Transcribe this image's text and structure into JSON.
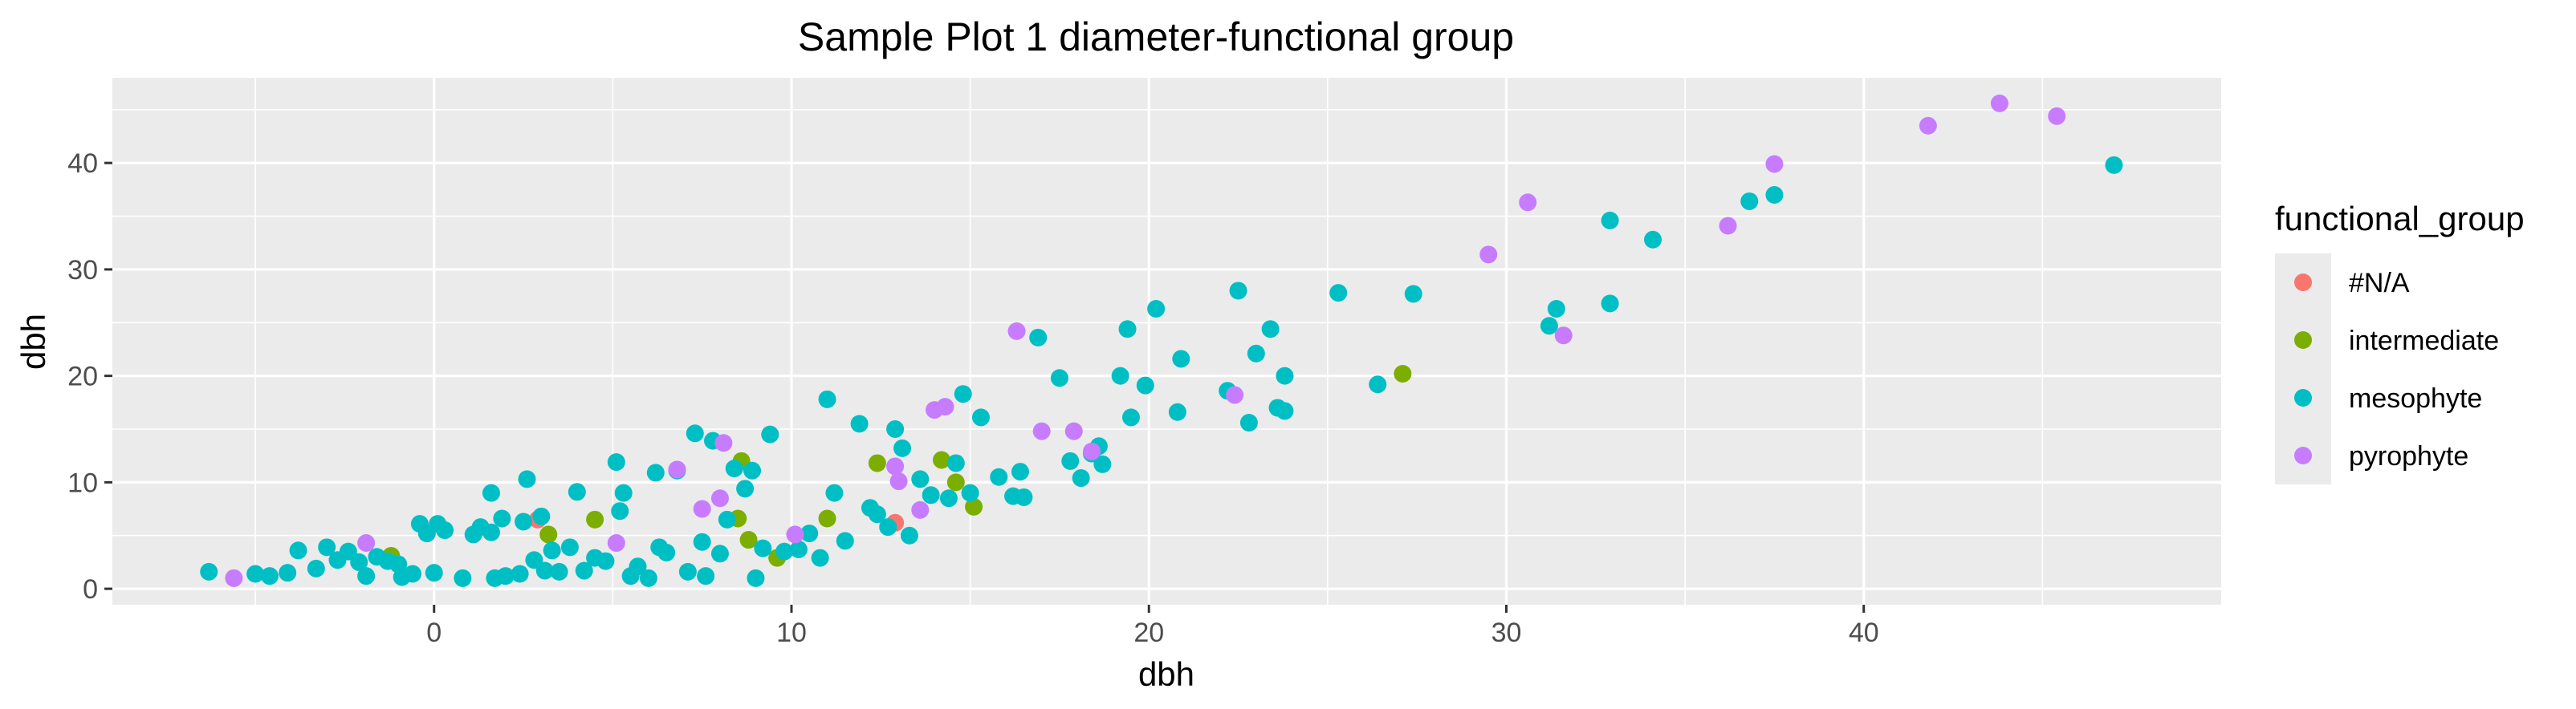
{
  "chart_data": {
    "type": "scatter",
    "title": "Sample Plot 1 diameter-functional group",
    "xlabel": "dbh",
    "ylabel": "dbh",
    "xlim": [
      -9,
      50
    ],
    "ylim": [
      -1.5,
      48
    ],
    "xticks": [
      0,
      10,
      20,
      30,
      40
    ],
    "yticks": [
      0,
      10,
      20,
      30,
      40
    ],
    "grid": true,
    "legend_position": "right",
    "legend_title": "functional_group",
    "series": [
      {
        "name": "#N/A",
        "color": "#F8766D",
        "points": [
          [
            2.9,
            6.5
          ],
          [
            12.9,
            6.2
          ]
        ]
      },
      {
        "name": "intermediate",
        "color": "#7CAE00",
        "points": [
          [
            -1.2,
            3.1
          ],
          [
            3.2,
            5.1
          ],
          [
            4.5,
            6.5
          ],
          [
            8.6,
            12.0
          ],
          [
            8.5,
            6.6
          ],
          [
            8.8,
            4.6
          ],
          [
            9.6,
            2.9
          ],
          [
            11.0,
            6.6
          ],
          [
            12.4,
            11.8
          ],
          [
            14.2,
            12.1
          ],
          [
            14.6,
            10.0
          ],
          [
            15.1,
            7.7
          ],
          [
            27.1,
            20.2
          ]
        ]
      },
      {
        "name": "mesophyte",
        "color": "#00BFC4",
        "points": [
          [
            -6.3,
            1.6
          ],
          [
            -5.0,
            1.4
          ],
          [
            -4.6,
            1.2
          ],
          [
            -4.1,
            1.5
          ],
          [
            -3.8,
            3.6
          ],
          [
            -3.3,
            1.9
          ],
          [
            -3.0,
            3.9
          ],
          [
            -2.7,
            2.7
          ],
          [
            -2.4,
            3.5
          ],
          [
            -2.1,
            2.5
          ],
          [
            -1.9,
            1.2
          ],
          [
            -1.6,
            3.0
          ],
          [
            -1.3,
            2.6
          ],
          [
            -1.0,
            2.3
          ],
          [
            -0.9,
            1.1
          ],
          [
            -0.6,
            1.4
          ],
          [
            -0.4,
            6.1
          ],
          [
            -0.2,
            5.2
          ],
          [
            0.0,
            1.5
          ],
          [
            0.1,
            6.1
          ],
          [
            0.3,
            5.5
          ],
          [
            0.8,
            1.0
          ],
          [
            1.1,
            5.1
          ],
          [
            1.3,
            5.8
          ],
          [
            1.6,
            5.3
          ],
          [
            1.6,
            9.0
          ],
          [
            1.7,
            1.0
          ],
          [
            1.9,
            6.6
          ],
          [
            2.0,
            1.2
          ],
          [
            2.4,
            1.4
          ],
          [
            2.5,
            6.3
          ],
          [
            2.6,
            10.3
          ],
          [
            2.8,
            2.7
          ],
          [
            3.0,
            6.8
          ],
          [
            3.1,
            1.7
          ],
          [
            3.3,
            3.6
          ],
          [
            3.5,
            1.6
          ],
          [
            3.8,
            3.9
          ],
          [
            4.0,
            9.1
          ],
          [
            4.2,
            1.7
          ],
          [
            4.5,
            2.9
          ],
          [
            4.8,
            2.6
          ],
          [
            5.1,
            11.9
          ],
          [
            5.2,
            7.3
          ],
          [
            5.3,
            9.0
          ],
          [
            5.5,
            1.2
          ],
          [
            5.7,
            2.1
          ],
          [
            6.0,
            1.0
          ],
          [
            6.2,
            10.9
          ],
          [
            6.3,
            3.9
          ],
          [
            6.5,
            3.4
          ],
          [
            6.8,
            11.1
          ],
          [
            7.1,
            1.6
          ],
          [
            7.3,
            14.6
          ],
          [
            7.5,
            4.4
          ],
          [
            7.6,
            1.2
          ],
          [
            7.8,
            13.9
          ],
          [
            8.0,
            3.3
          ],
          [
            8.2,
            6.5
          ],
          [
            8.4,
            11.3
          ],
          [
            8.7,
            9.4
          ],
          [
            8.9,
            11.1
          ],
          [
            9.0,
            1.0
          ],
          [
            9.2,
            3.8
          ],
          [
            9.4,
            14.5
          ],
          [
            9.8,
            3.5
          ],
          [
            10.2,
            3.7
          ],
          [
            10.5,
            5.2
          ],
          [
            10.8,
            2.9
          ],
          [
            11.0,
            17.8
          ],
          [
            11.2,
            9.0
          ],
          [
            11.5,
            4.5
          ],
          [
            11.9,
            15.5
          ],
          [
            12.2,
            7.6
          ],
          [
            12.4,
            7.0
          ],
          [
            12.7,
            5.8
          ],
          [
            12.9,
            15.0
          ],
          [
            13.1,
            13.2
          ],
          [
            13.3,
            5.0
          ],
          [
            13.6,
            10.3
          ],
          [
            13.9,
            8.8
          ],
          [
            14.4,
            8.5
          ],
          [
            14.6,
            11.8
          ],
          [
            14.8,
            18.3
          ],
          [
            15.0,
            9.0
          ],
          [
            15.3,
            16.1
          ],
          [
            15.8,
            10.5
          ],
          [
            16.2,
            8.7
          ],
          [
            16.4,
            11.0
          ],
          [
            16.5,
            8.6
          ],
          [
            16.9,
            23.6
          ],
          [
            17.5,
            19.8
          ],
          [
            17.8,
            12.0
          ],
          [
            18.1,
            10.4
          ],
          [
            18.4,
            12.7
          ],
          [
            18.6,
            13.4
          ],
          [
            18.7,
            11.7
          ],
          [
            19.2,
            20.0
          ],
          [
            19.4,
            24.4
          ],
          [
            19.5,
            16.1
          ],
          [
            19.9,
            19.1
          ],
          [
            20.2,
            26.3
          ],
          [
            20.8,
            16.6
          ],
          [
            20.9,
            21.6
          ],
          [
            22.2,
            18.6
          ],
          [
            22.5,
            28.0
          ],
          [
            22.8,
            15.6
          ],
          [
            23.0,
            22.1
          ],
          [
            23.4,
            24.4
          ],
          [
            23.6,
            17.0
          ],
          [
            23.8,
            20.0
          ],
          [
            23.8,
            16.7
          ],
          [
            25.3,
            27.8
          ],
          [
            26.4,
            19.2
          ],
          [
            27.4,
            27.7
          ],
          [
            31.2,
            24.7
          ],
          [
            31.4,
            26.3
          ],
          [
            32.9,
            26.8
          ],
          [
            32.9,
            34.6
          ],
          [
            34.1,
            32.8
          ],
          [
            36.8,
            36.4
          ],
          [
            37.5,
            37.0
          ],
          [
            47.0,
            39.8
          ]
        ]
      },
      {
        "name": "pyrophyte",
        "color": "#C77CFF",
        "points": [
          [
            -5.6,
            1.0
          ],
          [
            -1.9,
            4.3
          ],
          [
            5.1,
            4.3
          ],
          [
            6.8,
            11.2
          ],
          [
            7.5,
            7.5
          ],
          [
            8.0,
            8.5
          ],
          [
            8.1,
            13.7
          ],
          [
            10.1,
            5.1
          ],
          [
            12.9,
            11.5
          ],
          [
            13.0,
            10.1
          ],
          [
            13.6,
            7.4
          ],
          [
            14.0,
            16.8
          ],
          [
            14.3,
            17.1
          ],
          [
            16.3,
            24.2
          ],
          [
            17.0,
            14.8
          ],
          [
            17.9,
            14.8
          ],
          [
            18.4,
            12.9
          ],
          [
            22.4,
            18.2
          ],
          [
            29.5,
            31.4
          ],
          [
            30.6,
            36.3
          ],
          [
            31.6,
            23.8
          ],
          [
            36.2,
            34.1
          ],
          [
            37.5,
            39.9
          ],
          [
            41.8,
            43.5
          ],
          [
            43.8,
            45.6
          ],
          [
            45.4,
            44.4
          ]
        ]
      }
    ]
  }
}
